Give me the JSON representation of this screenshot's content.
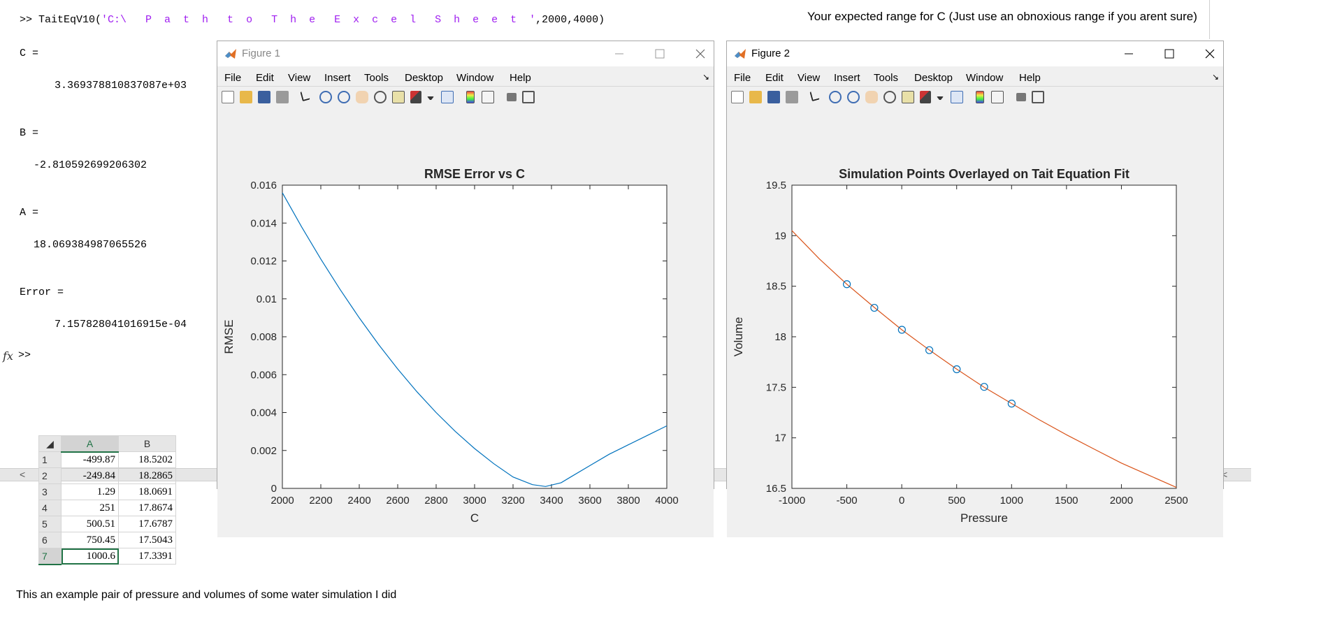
{
  "command_window": {
    "command_prefix": ">> TaitEqV10(",
    "command_string": "'C:\\   P  a  t  h   t  o   T  h  e   E  x  c  e  l   S  h  e  e  t  '",
    "command_suffix": ",2000,4000)",
    "hint": "Your expected range for C (Just use an obnoxious range if you arent sure)",
    "outputs": [
      {
        "name": "C =",
        "value": "3.369378810837087e+03"
      },
      {
        "name": "B =",
        "value": "-2.810592699206302"
      },
      {
        "name": "A =",
        "value": "18.069384987065526"
      },
      {
        "name": "Error =",
        "value": "7.157828041016915e-04"
      }
    ],
    "fx_label": "fx",
    "prompt": ">>",
    "scroll_left": "<",
    "scroll_right": "<"
  },
  "figures": [
    {
      "title": "Figure 1",
      "menus": [
        "File",
        "Edit",
        "View",
        "Insert",
        "Tools",
        "Desktop",
        "Window",
        "Help"
      ],
      "colors": {
        "line": "#0072bd"
      }
    },
    {
      "title": "Figure 2",
      "menus": [
        "File",
        "Edit",
        "View",
        "Insert",
        "Tools",
        "Desktop",
        "Window",
        "Help"
      ],
      "colors": {
        "line": "#d95319",
        "marker": "#0072bd"
      }
    }
  ],
  "chart_data": [
    {
      "type": "line",
      "title": "RMSE Error vs C",
      "xlabel": "C",
      "ylabel": "RMSE",
      "xlim": [
        2000,
        4000
      ],
      "ylim": [
        0,
        0.016
      ],
      "xticks": [
        "2000",
        "2200",
        "2400",
        "2600",
        "2800",
        "3000",
        "3200",
        "3400",
        "3600",
        "3800",
        "4000"
      ],
      "yticks": [
        "0",
        "0.002",
        "0.004",
        "0.006",
        "0.008",
        "0.01",
        "0.012",
        "0.014",
        "0.016"
      ],
      "grid": false,
      "series": [
        {
          "x": [
            2000,
            2100,
            2200,
            2300,
            2400,
            2500,
            2600,
            2700,
            2800,
            2900,
            3000,
            3100,
            3200,
            3300,
            3369,
            3450,
            3500,
            3600,
            3700,
            3800,
            3900,
            4000
          ],
          "y": [
            0.0156,
            0.0138,
            0.0121,
            0.0105,
            0.009,
            0.0076,
            0.0063,
            0.0051,
            0.004,
            0.003,
            0.0021,
            0.0013,
            0.0006,
            0.0002,
            0.0001,
            0.0003,
            0.0006,
            0.0012,
            0.0018,
            0.0023,
            0.0028,
            0.0033
          ]
        }
      ]
    },
    {
      "type": "scatter",
      "title": "Simulation Points Overlayed on Tait Equation Fit",
      "xlabel": "Pressure",
      "ylabel": "Volume",
      "xlim": [
        -1000,
        2500
      ],
      "ylim": [
        16.5,
        19.5
      ],
      "xticks": [
        "-1000",
        "-500",
        "0",
        "500",
        "1000",
        "1500",
        "2000",
        "2500"
      ],
      "yticks": [
        "16.5",
        "17",
        "17.5",
        "18",
        "18.5",
        "19",
        "19.5"
      ],
      "grid": false,
      "series": [
        {
          "x": [
            -1000,
            -750,
            -500,
            -250,
            0,
            250,
            500,
            750,
            1000,
            1250,
            1500,
            1750,
            2000,
            2250,
            2500
          ],
          "y": [
            19.05,
            18.77,
            18.52,
            18.29,
            18.07,
            17.87,
            17.68,
            17.5,
            17.34,
            17.18,
            17.03,
            16.89,
            16.75,
            16.63,
            16.51
          ]
        },
        {
          "x": [
            -499.87,
            -249.84,
            1.29,
            251,
            500.51,
            750.45,
            1000.6
          ],
          "y": [
            18.5202,
            18.2865,
            18.0691,
            17.8674,
            17.6787,
            17.5043,
            17.3391
          ]
        }
      ]
    }
  ],
  "spreadsheet": {
    "columns": [
      "A",
      "B"
    ],
    "rows": [
      {
        "n": "1",
        "a": "-499.87",
        "b": "18.5202"
      },
      {
        "n": "2",
        "a": "-249.84",
        "b": "18.2865"
      },
      {
        "n": "3",
        "a": "1.29",
        "b": "18.0691"
      },
      {
        "n": "4",
        "a": "251",
        "b": "17.8674"
      },
      {
        "n": "5",
        "a": "500.51",
        "b": "17.6787"
      },
      {
        "n": "6",
        "a": "750.45",
        "b": "17.5043"
      },
      {
        "n": "7",
        "a": "1000.6",
        "b": "17.3391"
      }
    ]
  },
  "caption": "This an example pair of pressure and volumes of some water simulation I did"
}
